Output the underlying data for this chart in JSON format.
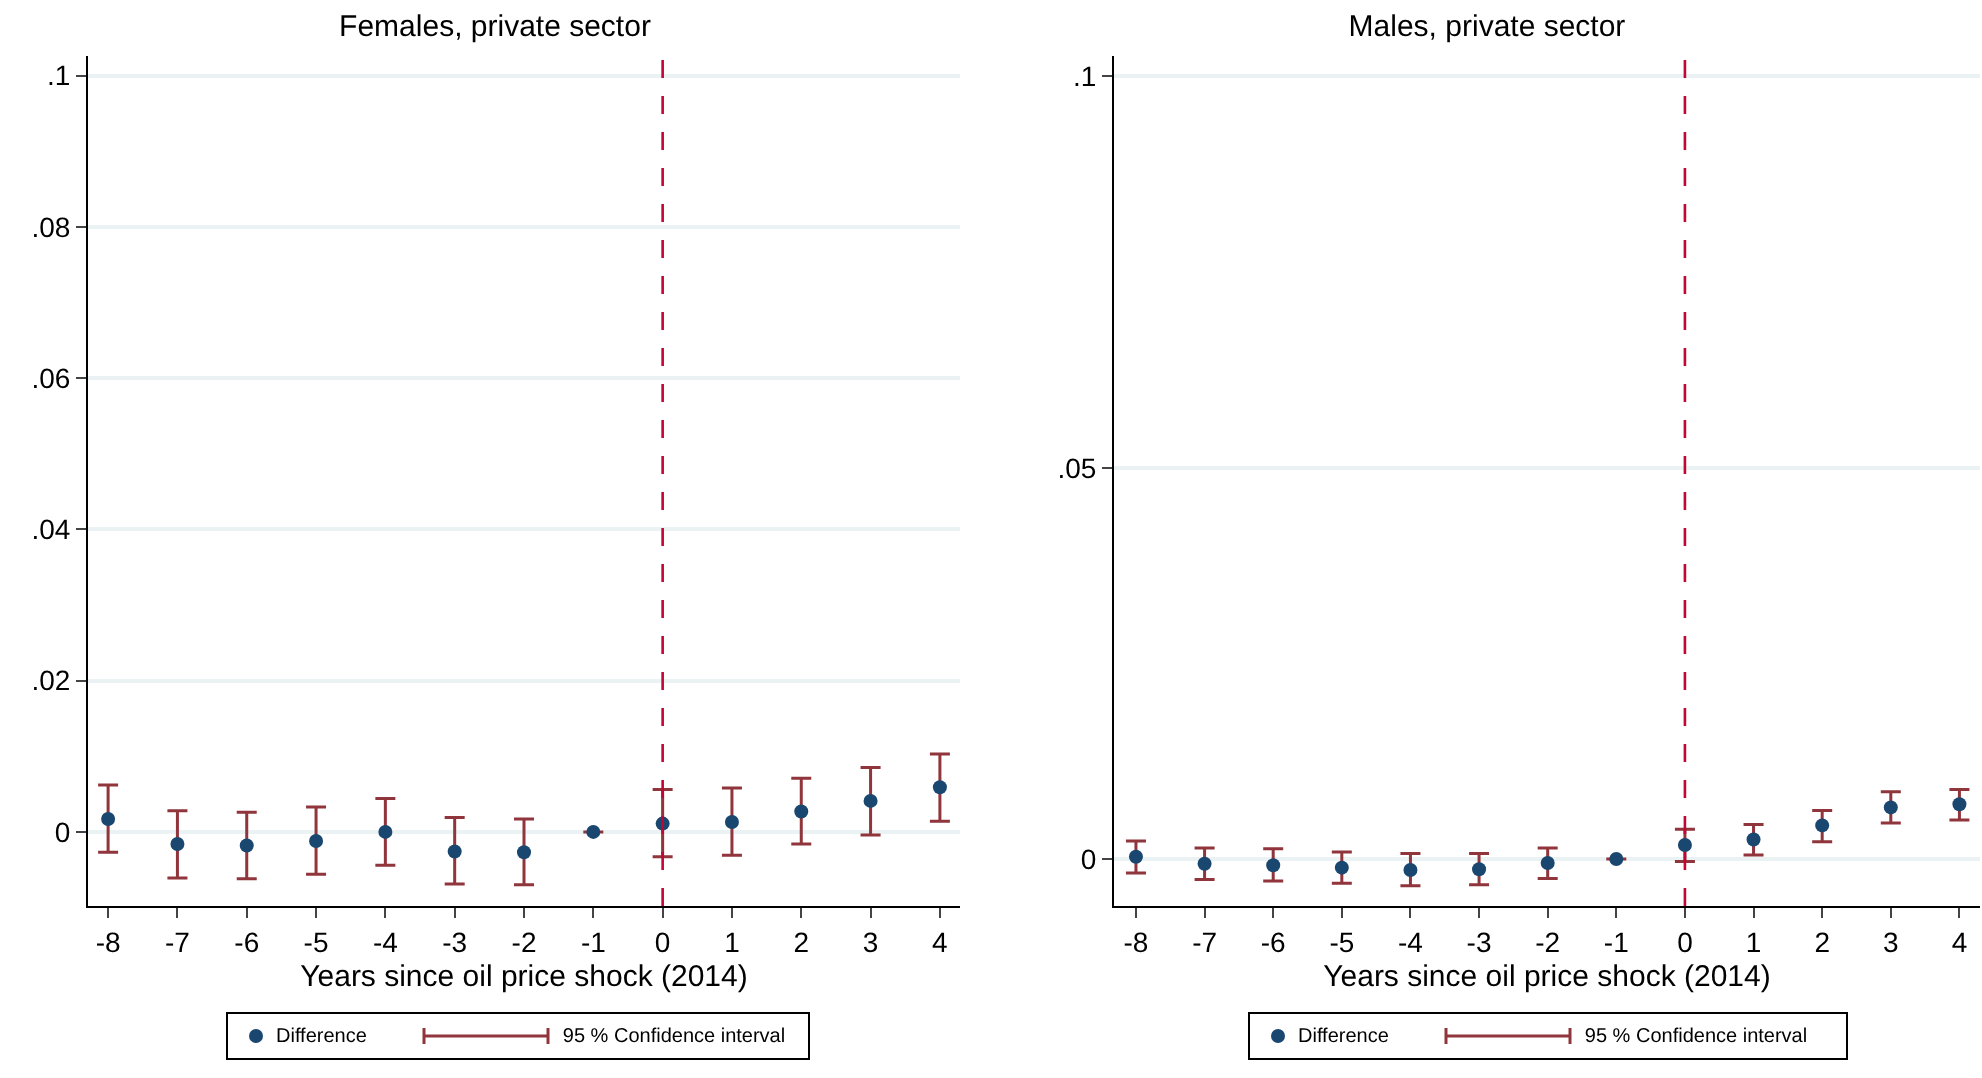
{
  "chart_data": [
    {
      "type": "scatter",
      "title": "Females, private sector",
      "xlabel": "Years since oil price shock (2014)",
      "x": [
        -8,
        -7,
        -6,
        -5,
        -4,
        -3,
        -2,
        -1,
        0,
        1,
        2,
        3,
        4
      ],
      "xlim": [
        -8.29,
        4.29
      ],
      "xticks": [
        -8,
        -7,
        -6,
        -5,
        -4,
        -3,
        -2,
        -1,
        0,
        1,
        2,
        3,
        4
      ],
      "ylim": [
        -0.0098,
        0.1026
      ],
      "yticks": [
        0,
        {
          "value": 0.02,
          "label": ".02"
        },
        {
          "value": 0.04,
          "label": ".04"
        },
        {
          "value": 0.06,
          "label": ".06"
        },
        {
          "value": 0.08,
          "label": ".08"
        },
        {
          "value": 0.1,
          "label": ".1"
        }
      ],
      "grid": "y",
      "legend": "bottom",
      "marker": "circle",
      "series": [
        {
          "name": "Difference",
          "color": "#1a476f",
          "values": [
            0.0017,
            -0.0016,
            -0.0018,
            -0.0012,
            0,
            -0.0026,
            -0.0027,
            0,
            0.0011,
            0.0013,
            0.0027,
            0.0041,
            0.0059
          ],
          "errors": [
            [
              -0.0027,
              0.0062
            ],
            [
              -0.0061,
              0.0028
            ],
            [
              -0.0062,
              0.0026
            ],
            [
              -0.0056,
              0.0033
            ],
            [
              -0.0044,
              0.0044
            ],
            [
              -0.0069,
              0.0019
            ],
            [
              -0.007,
              0.0017
            ],
            [
              0,
              0
            ],
            [
              -0.0033,
              0.0056
            ],
            [
              -0.0031,
              0.0058
            ],
            [
              -0.0016,
              0.0071
            ],
            [
              -0.0004,
              0.0085
            ],
            [
              0.0014,
              0.0103
            ]
          ]
        }
      ],
      "annotations": [
        "95 % Confidence interval"
      ],
      "ref_lines": [
        {
          "axis": "x",
          "value": 0,
          "color": "#c10534",
          "line_style": "dashed"
        }
      ]
    },
    {
      "type": "scatter",
      "title": "Males, private sector",
      "xlabel": "Years since oil price shock (2014)",
      "x": [
        -8,
        -7,
        -6,
        -5,
        -4,
        -3,
        -2,
        -1,
        0,
        1,
        2,
        3,
        4
      ],
      "xlim": [
        -8.32,
        4.3
      ],
      "xticks": [
        -8,
        -7,
        -6,
        -5,
        -4,
        -3,
        -2,
        -1,
        0,
        1,
        2,
        3,
        4
      ],
      "ylim": [
        -0.006,
        0.1026
      ],
      "yticks": [
        0,
        {
          "value": 0.05,
          "label": ".05"
        },
        {
          "value": 0.1,
          "label": ".1"
        }
      ],
      "grid": "y",
      "legend": "bottom",
      "marker": "circle",
      "series": [
        {
          "name": "Difference",
          "color": "#1a476f",
          "values": [
            0.0003,
            -0.0006,
            -0.0008,
            -0.0011,
            -0.0014,
            -0.0013,
            -0.0005,
            0,
            0.0018,
            0.0025,
            0.0043,
            0.0066,
            0.007
          ],
          "errors": [
            [
              -0.0018,
              0.0023
            ],
            [
              -0.0026,
              0.0014
            ],
            [
              -0.0028,
              0.0013
            ],
            [
              -0.0031,
              0.0009
            ],
            [
              -0.0034,
              0.0007
            ],
            [
              -0.0033,
              0.0007
            ],
            [
              -0.0025,
              0.0014
            ],
            [
              0,
              0
            ],
            [
              -0.0003,
              0.0038
            ],
            [
              0.0005,
              0.0044
            ],
            [
              0.0022,
              0.0062
            ],
            [
              0.0046,
              0.0086
            ],
            [
              0.005,
              0.0089
            ]
          ]
        }
      ],
      "annotations": [
        "95 % Confidence interval"
      ],
      "ref_lines": [
        {
          "axis": "x",
          "value": 0,
          "color": "#c10534",
          "line_style": "dashed"
        }
      ]
    }
  ]
}
